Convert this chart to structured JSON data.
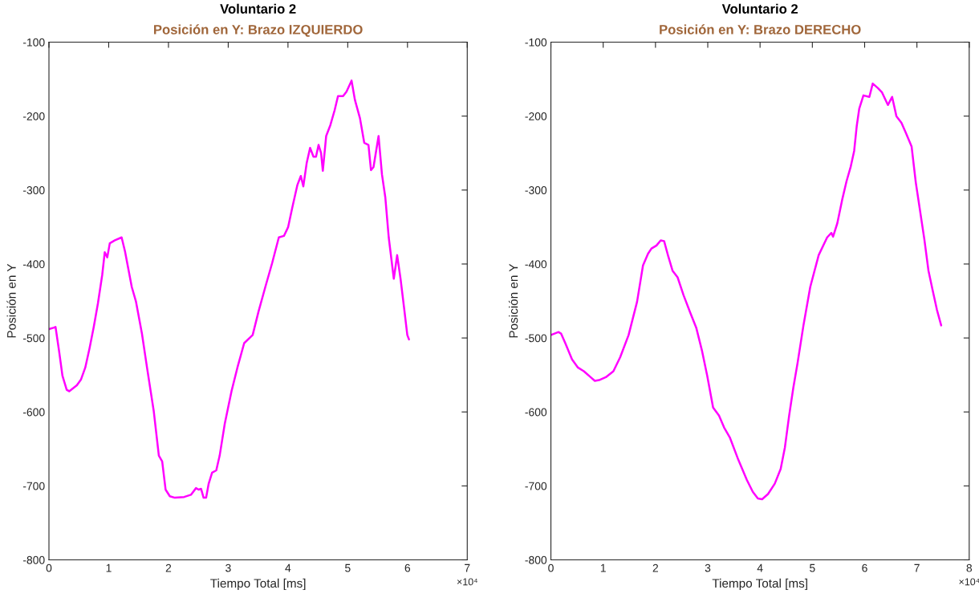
{
  "chart_data": [
    {
      "type": "line",
      "title": "Voluntario 2",
      "subtitle": "Posición en Y: Brazo IZQUIERDO",
      "xlabel": "Tiempo Total [ms]",
      "ylabel": "Posición en Y",
      "annotations": [
        "×10⁴"
      ],
      "grid": false,
      "legend": false,
      "xlim": [
        0,
        7
      ],
      "xticks": [
        0,
        1,
        2,
        3,
        4,
        5,
        6,
        7
      ],
      "ylim": [
        -800,
        -100
      ],
      "yticks": [
        -800,
        -700,
        -600,
        -500,
        -400,
        -300,
        -200,
        -100
      ],
      "series": [
        {
          "color": "#ff00ff",
          "x": [
            0,
            0.085,
            0.11,
            0.17,
            0.226,
            0.297,
            0.339,
            0.467,
            0.537,
            0.608,
            0.679,
            0.75,
            0.82,
            0.891,
            0.934,
            0.976,
            1.018,
            1.103,
            1.216,
            1.273,
            1.386,
            1.457,
            1.556,
            1.641,
            1.754,
            1.839,
            1.895,
            1.952,
            2.023,
            2.107,
            2.263,
            2.376,
            2.461,
            2.504,
            2.546,
            2.588,
            2.63,
            2.673,
            2.73,
            2.8,
            2.857,
            2.942,
            3.055,
            3.154,
            3.267,
            3.409,
            3.508,
            3.621,
            3.734,
            3.847,
            3.932,
            4.003,
            4.074,
            4.158,
            4.215,
            4.257,
            4.314,
            4.37,
            4.427,
            4.469,
            4.512,
            4.554,
            4.583,
            4.639,
            4.71,
            4.781,
            4.837,
            4.922,
            4.979,
            5.064,
            5.12,
            5.205,
            5.276,
            5.347,
            5.389,
            5.431,
            5.516,
            5.573,
            5.629,
            5.686,
            5.771,
            5.827,
            5.884,
            5.941,
            5.997,
            6.025
          ],
          "values": [
            -488,
            -486,
            -485,
            -518,
            -551,
            -570,
            -572,
            -564,
            -556,
            -540,
            -514,
            -485,
            -453,
            -415,
            -384,
            -391,
            -372,
            -368,
            -364,
            -383,
            -431,
            -451,
            -494,
            -540,
            -599,
            -659,
            -667,
            -705,
            -714,
            -716,
            -715,
            -712,
            -703,
            -705,
            -704,
            -716,
            -716,
            -697,
            -682,
            -679,
            -659,
            -616,
            -572,
            -540,
            -507,
            -496,
            -464,
            -431,
            -399,
            -364,
            -362,
            -350,
            -323,
            -293,
            -281,
            -295,
            -263,
            -243,
            -255,
            -255,
            -239,
            -250,
            -274,
            -227,
            -212,
            -192,
            -173,
            -173,
            -167,
            -152,
            -178,
            -203,
            -236,
            -239,
            -273,
            -269,
            -227,
            -279,
            -310,
            -364,
            -420,
            -388,
            -420,
            -458,
            -496,
            -502
          ]
        }
      ]
    },
    {
      "type": "line",
      "title": "Voluntario 2",
      "subtitle": "Posición en Y: Brazo DERECHO",
      "xlabel": "Tiempo Total [ms]",
      "ylabel": "Posición en Y",
      "annotations": [
        "×10⁴"
      ],
      "grid": false,
      "legend": false,
      "xlim": [
        0,
        8
      ],
      "xticks": [
        0,
        1,
        2,
        3,
        4,
        5,
        6,
        7,
        8
      ],
      "ylim": [
        -800,
        -100
      ],
      "yticks": [
        -800,
        -700,
        -600,
        -500,
        -400,
        -300,
        -200,
        -100
      ],
      "series": [
        {
          "color": "#ff00ff",
          "x": [
            0,
            0.145,
            0.194,
            0.275,
            0.404,
            0.517,
            0.63,
            0.759,
            0.84,
            0.921,
            1.05,
            1.195,
            1.325,
            1.486,
            1.648,
            1.761,
            1.858,
            1.923,
            2.019,
            2.1,
            2.165,
            2.246,
            2.326,
            2.423,
            2.536,
            2.666,
            2.779,
            2.892,
            2.989,
            3.102,
            3.215,
            3.312,
            3.425,
            3.586,
            3.748,
            3.861,
            3.958,
            4.039,
            4.152,
            4.281,
            4.394,
            4.475,
            4.556,
            4.637,
            4.717,
            4.83,
            4.96,
            5.121,
            5.283,
            5.364,
            5.396,
            5.477,
            5.574,
            5.654,
            5.735,
            5.8,
            5.848,
            5.897,
            5.977,
            6.09,
            6.155,
            6.252,
            6.333,
            6.445,
            6.526,
            6.607,
            6.704,
            6.785,
            6.898,
            6.979,
            7.06,
            7.141,
            7.221,
            7.302,
            7.383,
            7.464
          ],
          "values": [
            -496,
            -492,
            -494,
            -507,
            -529,
            -540,
            -545,
            -553,
            -558,
            -557,
            -553,
            -545,
            -526,
            -496,
            -451,
            -402,
            -386,
            -379,
            -375,
            -368,
            -369,
            -390,
            -409,
            -418,
            -442,
            -466,
            -486,
            -518,
            -551,
            -594,
            -605,
            -621,
            -635,
            -665,
            -692,
            -708,
            -717,
            -718,
            -711,
            -697,
            -677,
            -648,
            -605,
            -567,
            -534,
            -483,
            -431,
            -388,
            -364,
            -358,
            -363,
            -345,
            -312,
            -288,
            -268,
            -247,
            -214,
            -190,
            -172,
            -174,
            -156,
            -162,
            -168,
            -185,
            -174,
            -200,
            -209,
            -222,
            -241,
            -290,
            -328,
            -366,
            -409,
            -436,
            -462,
            -483
          ]
        }
      ]
    }
  ]
}
